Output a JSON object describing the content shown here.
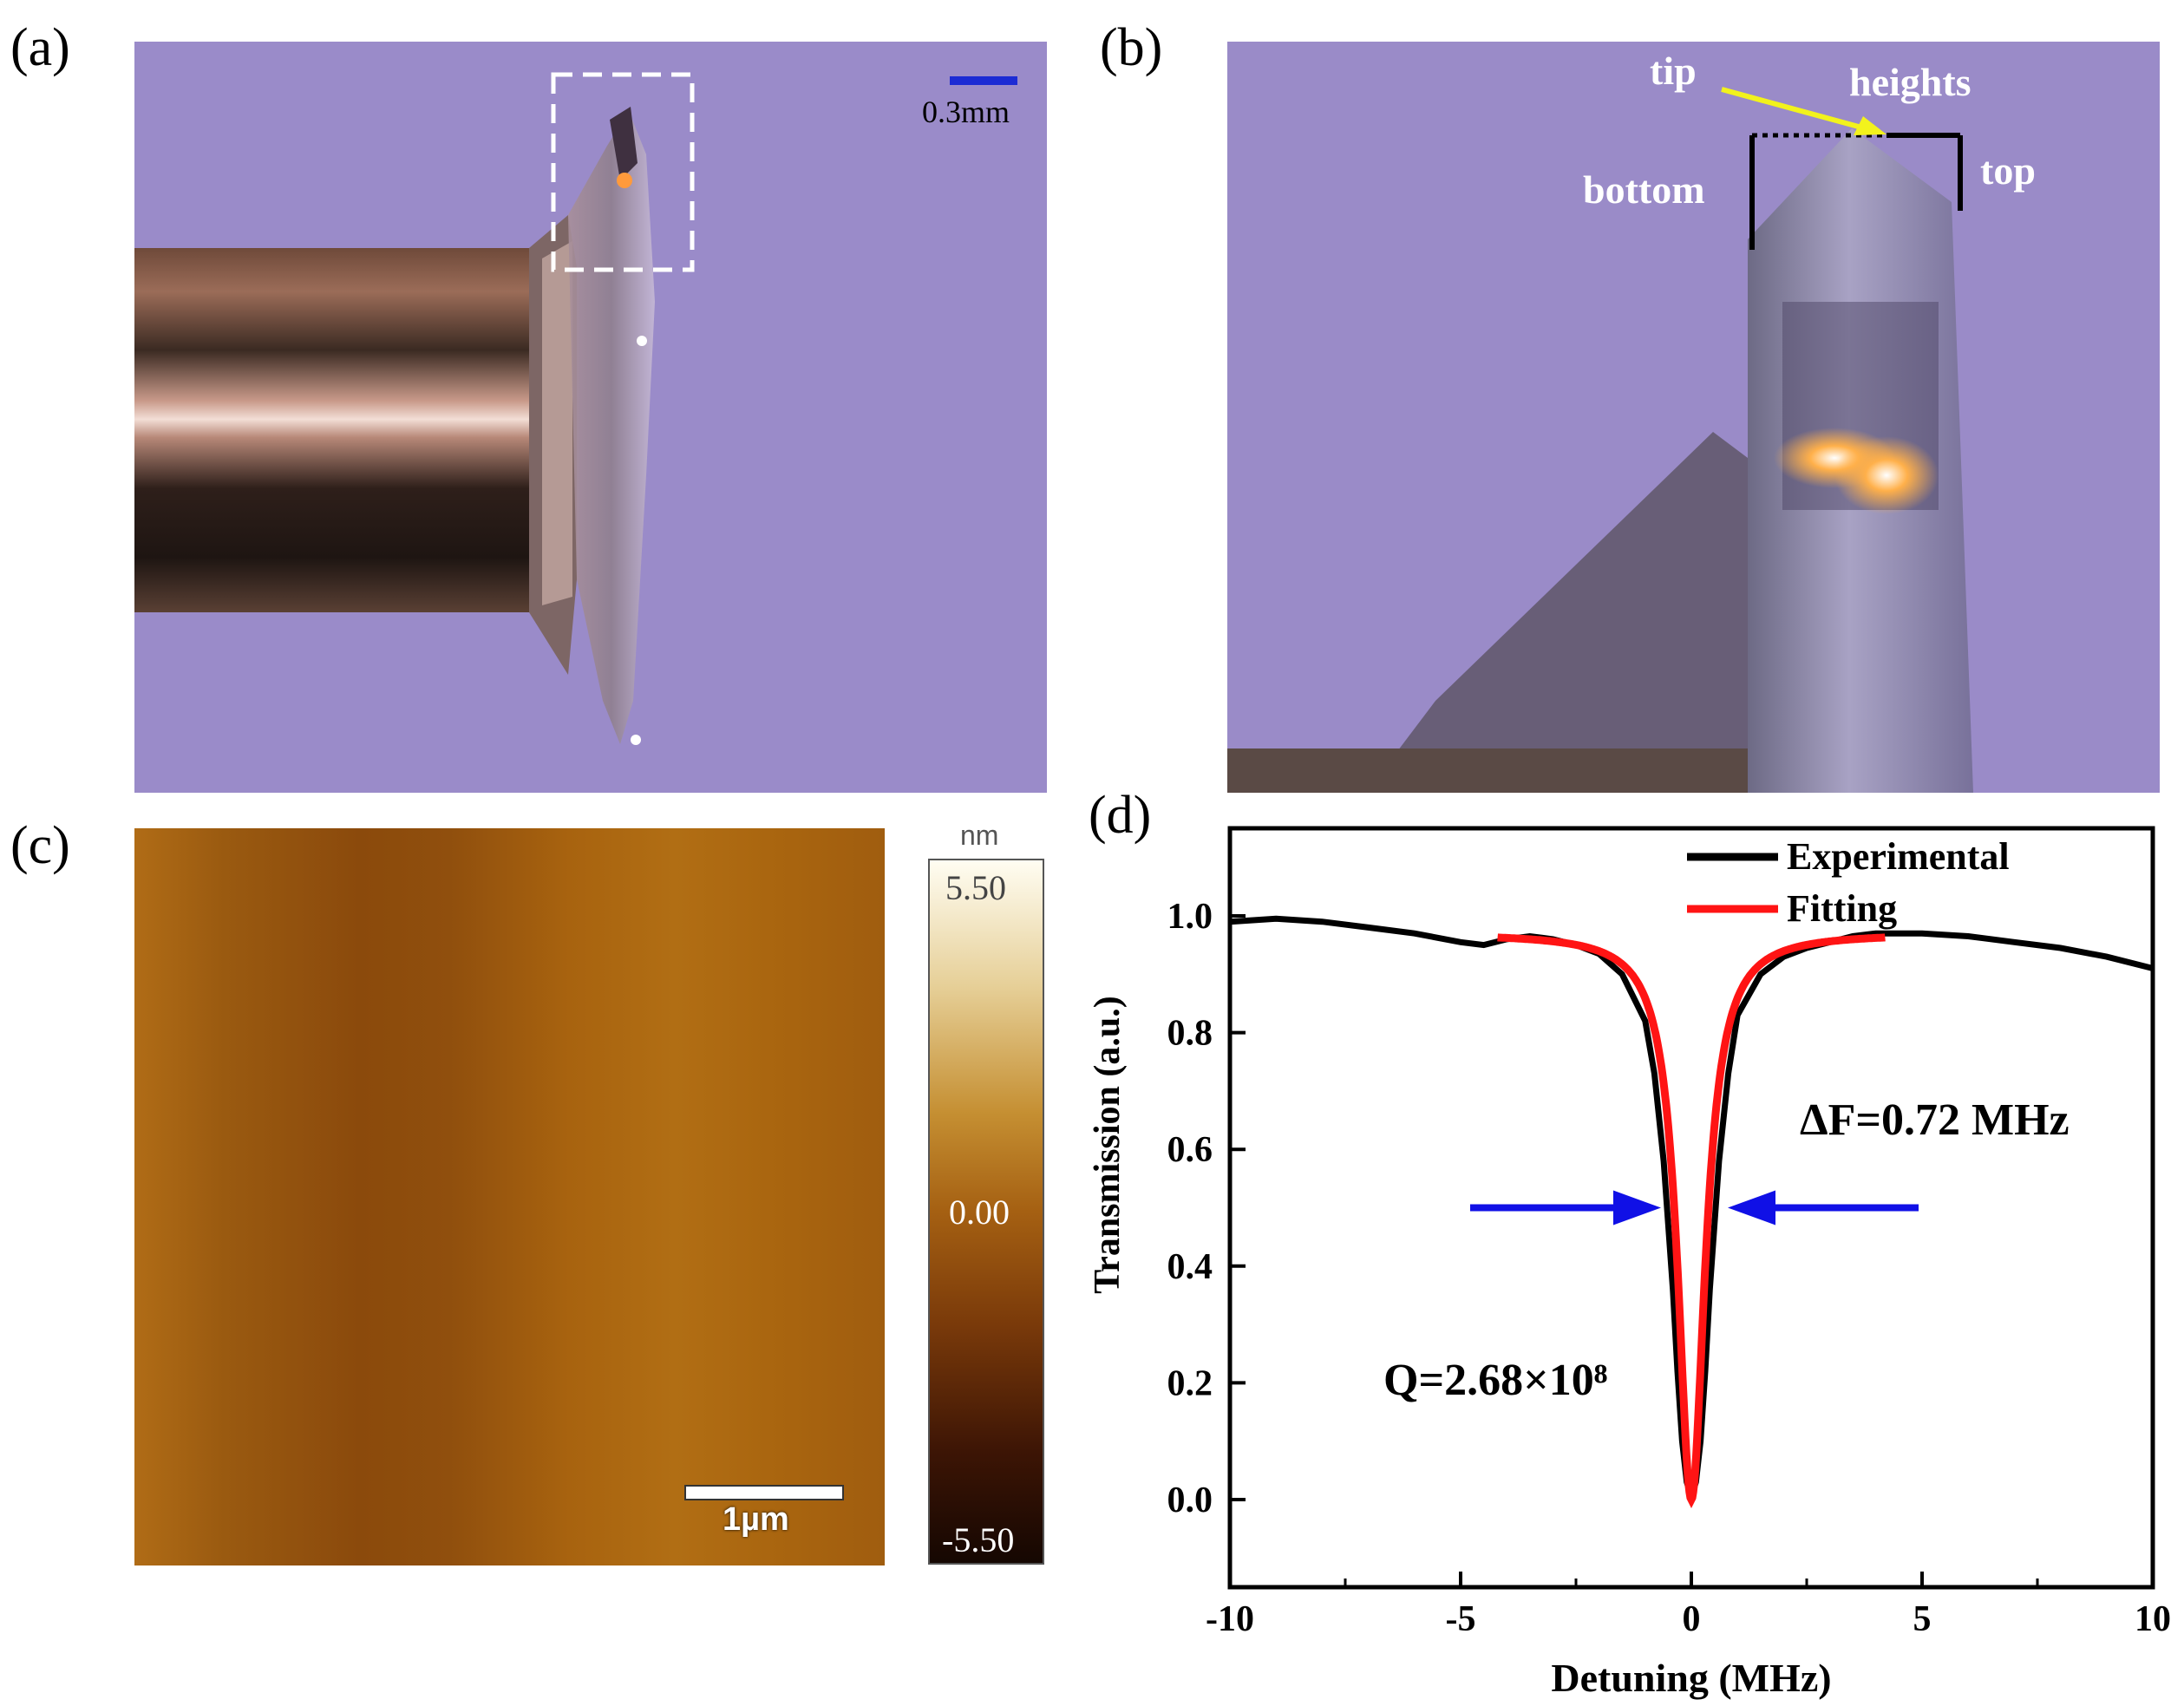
{
  "panels": {
    "a": {
      "label": "(a)",
      "scale_bar": "0.3mm",
      "colors": {
        "background": "#9a8bc9",
        "scale_bar": "#1c2bd4",
        "metal": "#8a5a46"
      }
    },
    "b": {
      "label": "(b)",
      "annotations": {
        "tip": "tip",
        "heights": "heights",
        "bottom": "bottom",
        "top": "top"
      },
      "colors": {
        "background": "#9a8bc8",
        "arrow": "#f2f21c"
      }
    },
    "c": {
      "label": "(c)",
      "scale_bar": "1µm",
      "colorbar": {
        "unit": "nm",
        "max": "5.50",
        "mid": "0.00",
        "min": "-5.50"
      },
      "colors": {
        "surface": "#a8610e",
        "colorbar_top": "#fffdf2",
        "colorbar_bottom": "#150702"
      }
    },
    "d": {
      "label": "(d)",
      "delta_f": "ΔF=0.72 MHz",
      "q_factor": "Q=2.68×10⁸",
      "colors": {
        "experimental": "#000000",
        "fitting": "#ff1414",
        "arrows": "#1010e6"
      }
    }
  },
  "chart_data": {
    "type": "line",
    "xlabel": "Detuning (MHz)",
    "ylabel": "Transmission (a.u.)",
    "xlim": [
      -10,
      10
    ],
    "ylim": [
      -0.15,
      1.15
    ],
    "xticks": [
      -10,
      -5,
      0,
      5,
      10
    ],
    "yticks": [
      0.0,
      0.2,
      0.4,
      0.6,
      0.8,
      1.0
    ],
    "ytick_labels": [
      "0.0",
      "0.2",
      "0.4",
      "0.6",
      "0.8",
      "1.0"
    ],
    "legend_position": "top-center",
    "series": [
      {
        "name": "Experimental",
        "color": "#000000",
        "x": [
          -10,
          -9,
          -8,
          -7,
          -6,
          -5,
          -4.5,
          -4,
          -3.5,
          -3,
          -2.5,
          -2,
          -1.5,
          -1,
          -0.8,
          -0.6,
          -0.4,
          -0.3,
          -0.2,
          -0.1,
          0,
          0.1,
          0.2,
          0.3,
          0.4,
          0.6,
          0.8,
          1,
          1.5,
          2,
          2.5,
          3,
          3.5,
          4,
          5,
          6,
          7,
          8,
          9,
          10
        ],
        "y": [
          0.99,
          0.995,
          0.99,
          0.98,
          0.97,
          0.955,
          0.95,
          0.96,
          0.965,
          0.96,
          0.95,
          0.935,
          0.9,
          0.82,
          0.73,
          0.58,
          0.36,
          0.22,
          0.1,
          0.03,
          0.005,
          0.03,
          0.1,
          0.22,
          0.36,
          0.58,
          0.73,
          0.83,
          0.9,
          0.93,
          0.945,
          0.955,
          0.965,
          0.97,
          0.97,
          0.965,
          0.955,
          0.945,
          0.93,
          0.91
        ]
      },
      {
        "name": "Fitting",
        "color": "#ff1414",
        "x0": 0,
        "width": 0.72,
        "baseline": 0.97,
        "min": 0.0,
        "xrange": [
          -4.2,
          4.2
        ]
      }
    ],
    "annotations": [
      "ΔF=0.72 MHz",
      "Q=2.68×10⁸"
    ]
  }
}
